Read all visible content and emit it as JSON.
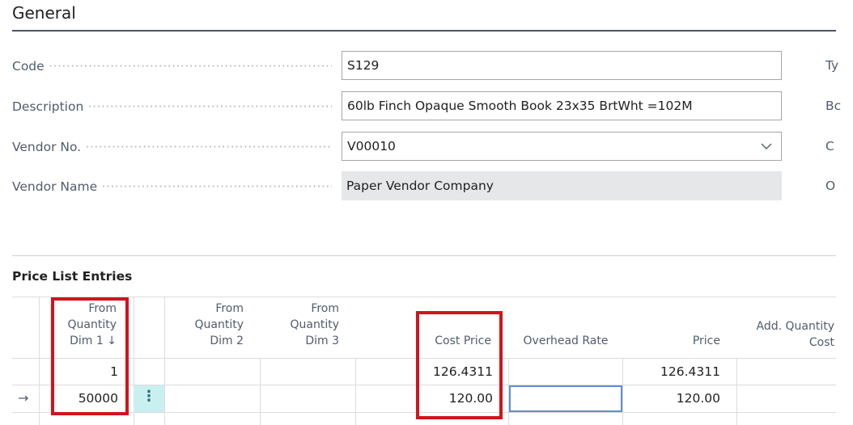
{
  "section": {
    "title": "General"
  },
  "fields": {
    "code": {
      "label": "Code",
      "value": "S129"
    },
    "description": {
      "label": "Description",
      "value": "60lb Finch Opaque Smooth Book 23x35 BrtWht  =102M"
    },
    "vendor_no": {
      "label": "Vendor No.",
      "value": "V00010"
    },
    "vendor_name": {
      "label": "Vendor Name",
      "value": "Paper Vendor Company"
    }
  },
  "right_column_letters": [
    "Ty",
    "Bc",
    "C",
    "O"
  ],
  "price_list": {
    "title": "Price List Entries",
    "columns": {
      "from_qty_dim1": [
        "From",
        "Quantity",
        "Dim 1 ↓"
      ],
      "from_qty_dim2": [
        "From",
        "Quantity",
        "Dim 2"
      ],
      "from_qty_dim3": [
        "From",
        "Quantity",
        "Dim 3"
      ],
      "cost_price": "Cost Price",
      "overhead_rate": "Overhead Rate",
      "price": "Price",
      "add_qty_cost": [
        "Add. Quantity",
        "Cost"
      ]
    },
    "rows": [
      {
        "from_qty_dim1": "1",
        "cost_price": "126.4311",
        "price": "126.4311"
      },
      {
        "from_qty_dim1": "50000",
        "cost_price": "120.00",
        "price": "120.00"
      }
    ],
    "current_row_marker": "→",
    "row_menu_glyph": "⋮"
  },
  "colors": {
    "highlight": "#d0141c",
    "selected_cell": "#c9f0f1",
    "focus_border": "#5a8fd6"
  }
}
